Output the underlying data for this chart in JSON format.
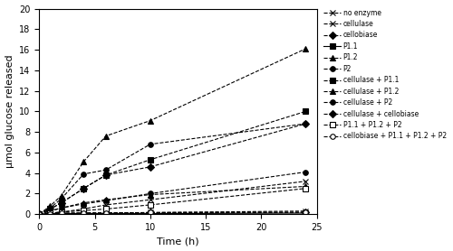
{
  "time_points": [
    0,
    1,
    2,
    4,
    6,
    10,
    24
  ],
  "series": [
    {
      "label": "no enzyme",
      "marker": "x",
      "linestyle": "--",
      "color": "#000000",
      "markersize": 5,
      "linewidth": 0.8,
      "values": [
        0,
        0.05,
        0.08,
        0.1,
        0.12,
        0.15,
        0.3
      ]
    },
    {
      "label": "cellulase",
      "marker": "x",
      "linestyle": "--",
      "color": "#000000",
      "markersize": 5,
      "linewidth": 0.8,
      "values": [
        0,
        0.1,
        0.2,
        0.5,
        0.9,
        1.4,
        3.2
      ]
    },
    {
      "label": "cellobiase",
      "marker": "D",
      "linestyle": "--",
      "color": "#000000",
      "markersize": 4,
      "linewidth": 0.8,
      "values": [
        0,
        0.05,
        0.08,
        0.1,
        0.12,
        0.15,
        0.18
      ]
    },
    {
      "label": "P1.1",
      "marker": "s",
      "linestyle": "-",
      "color": "#000000",
      "markersize": 4,
      "linewidth": 0.8,
      "values": [
        0,
        0.05,
        0.05,
        0.05,
        0.05,
        0.05,
        0.1
      ]
    },
    {
      "label": "P1.2",
      "marker": "^",
      "linestyle": "--",
      "color": "#000000",
      "markersize": 5,
      "linewidth": 0.8,
      "values": [
        0,
        0.3,
        0.6,
        1.1,
        1.4,
        1.9,
        2.7
      ]
    },
    {
      "label": "P2",
      "marker": "o",
      "linestyle": "--",
      "color": "#000000",
      "markersize": 4,
      "linewidth": 0.8,
      "values": [
        0,
        0.3,
        0.6,
        1.0,
        1.3,
        2.0,
        4.1
      ]
    },
    {
      "label": "cellulase + P1.1",
      "marker": "s",
      "linestyle": "--",
      "color": "#000000",
      "markersize": 5,
      "linewidth": 0.8,
      "values": [
        0,
        0.5,
        1.1,
        2.5,
        3.8,
        5.3,
        10.0
      ]
    },
    {
      "label": "cellulase + P1.2",
      "marker": "^",
      "linestyle": "--",
      "color": "#000000",
      "markersize": 5,
      "linewidth": 0.8,
      "values": [
        0,
        0.8,
        1.8,
        5.1,
        7.6,
        9.1,
        16.1
      ]
    },
    {
      "label": "cellulase + P2",
      "marker": "o",
      "linestyle": "--",
      "color": "#000000",
      "markersize": 4,
      "linewidth": 0.8,
      "values": [
        0,
        0.6,
        1.5,
        3.9,
        4.3,
        6.8,
        8.8
      ]
    },
    {
      "label": "cellulase + cellobiase",
      "marker": "D",
      "linestyle": "--",
      "color": "#000000",
      "markersize": 4,
      "linewidth": 0.8,
      "values": [
        0,
        0.5,
        1.1,
        2.5,
        3.8,
        4.6,
        8.8
      ]
    },
    {
      "label": "P1.1 + P1.2 + P2",
      "marker": "s",
      "linestyle": "--",
      "color": "#000000",
      "markersize": 4,
      "linewidth": 0.8,
      "markerfacecolor": "white",
      "values": [
        0,
        0.1,
        0.2,
        0.35,
        0.5,
        0.9,
        2.5
      ]
    },
    {
      "label": "cellobiase + P1.1 + P1.2 + P2",
      "marker": "o",
      "linestyle": "--",
      "color": "#000000",
      "markersize": 4,
      "linewidth": 0.8,
      "markerfacecolor": "white",
      "values": [
        0,
        0.05,
        0.08,
        0.1,
        0.12,
        0.15,
        0.18
      ]
    }
  ],
  "xlabel": "Time (h)",
  "ylabel": "μmol glucose released",
  "xlim": [
    0,
    25
  ],
  "ylim": [
    0,
    20
  ],
  "xticks": [
    0,
    5,
    10,
    15,
    20,
    25
  ],
  "yticks": [
    0,
    2,
    4,
    6,
    8,
    10,
    12,
    14,
    16,
    18,
    20
  ]
}
